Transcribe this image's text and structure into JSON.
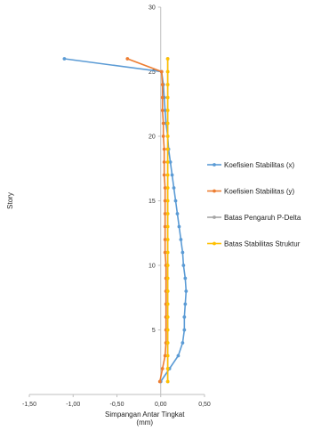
{
  "chart_data": {
    "type": "line",
    "xlabel": "Simpangan Antar Tingkat\n(mm)",
    "ylabel": "Story",
    "xlim": [
      -1.5,
      0.5
    ],
    "ylim": [
      0,
      30
    ],
    "xticks": [
      "-1,50",
      "-1,00",
      "-0,50",
      "0,00",
      "0,50"
    ],
    "yticks": [
      "5",
      "10",
      "15",
      "20",
      "25",
      "30"
    ],
    "grid": false,
    "legend_position": "right",
    "series": [
      {
        "name": "Koefisien Stabilitas (x)",
        "color": "#5b9bd5",
        "marker": "circle",
        "points": [
          [
            0.0,
            1
          ],
          [
            0.1,
            2
          ],
          [
            0.2,
            3
          ],
          [
            0.25,
            4
          ],
          [
            0.27,
            5
          ],
          [
            0.27,
            6
          ],
          [
            0.28,
            7
          ],
          [
            0.29,
            8
          ],
          [
            0.28,
            9
          ],
          [
            0.26,
            10
          ],
          [
            0.25,
            11
          ],
          [
            0.23,
            12
          ],
          [
            0.21,
            13
          ],
          [
            0.19,
            14
          ],
          [
            0.17,
            15
          ],
          [
            0.15,
            16
          ],
          [
            0.13,
            17
          ],
          [
            0.11,
            18
          ],
          [
            0.09,
            19
          ],
          [
            0.08,
            20
          ],
          [
            0.06,
            21
          ],
          [
            0.05,
            22
          ],
          [
            0.04,
            23
          ],
          [
            0.03,
            24
          ],
          [
            0.01,
            25
          ],
          [
            -1.1,
            26
          ]
        ]
      },
      {
        "name": "Koefisien Stabilitas (y)",
        "color": "#ed7d31",
        "marker": "circle",
        "points": [
          [
            -0.01,
            1
          ],
          [
            0.02,
            2
          ],
          [
            0.05,
            3
          ],
          [
            0.06,
            4
          ],
          [
            0.06,
            5
          ],
          [
            0.06,
            6
          ],
          [
            0.06,
            7
          ],
          [
            0.06,
            8
          ],
          [
            0.06,
            9
          ],
          [
            0.06,
            10
          ],
          [
            0.05,
            11
          ],
          [
            0.05,
            12
          ],
          [
            0.05,
            13
          ],
          [
            0.05,
            14
          ],
          [
            0.05,
            15
          ],
          [
            0.05,
            16
          ],
          [
            0.04,
            17
          ],
          [
            0.04,
            18
          ],
          [
            0.04,
            19
          ],
          [
            0.03,
            20
          ],
          [
            0.03,
            21
          ],
          [
            0.02,
            22
          ],
          [
            0.02,
            23
          ],
          [
            0.02,
            24
          ],
          [
            0.01,
            25
          ],
          [
            -0.38,
            26
          ]
        ]
      },
      {
        "name": "Batas Pengaruh P-Delta",
        "color": "#a5a5a5",
        "marker": "circle",
        "points": [
          [
            0.08,
            1
          ],
          [
            0.08,
            2
          ],
          [
            0.08,
            3
          ],
          [
            0.08,
            4
          ],
          [
            0.08,
            5
          ],
          [
            0.08,
            6
          ],
          [
            0.08,
            7
          ],
          [
            0.08,
            8
          ],
          [
            0.08,
            9
          ],
          [
            0.08,
            10
          ],
          [
            0.08,
            11
          ],
          [
            0.08,
            12
          ],
          [
            0.08,
            13
          ],
          [
            0.08,
            14
          ],
          [
            0.08,
            15
          ],
          [
            0.08,
            16
          ],
          [
            0.08,
            17
          ],
          [
            0.08,
            18
          ],
          [
            0.08,
            19
          ],
          [
            0.08,
            20
          ],
          [
            0.08,
            21
          ],
          [
            0.08,
            22
          ],
          [
            0.08,
            23
          ],
          [
            0.08,
            24
          ],
          [
            0.08,
            25
          ],
          [
            0.08,
            26
          ]
        ]
      },
      {
        "name": "Batas Stabilitas Struktur",
        "color": "#ffc000",
        "marker": "circle",
        "points": [
          [
            0.08,
            1
          ],
          [
            0.08,
            2
          ],
          [
            0.08,
            3
          ],
          [
            0.08,
            4
          ],
          [
            0.08,
            5
          ],
          [
            0.08,
            6
          ],
          [
            0.08,
            7
          ],
          [
            0.08,
            8
          ],
          [
            0.08,
            9
          ],
          [
            0.08,
            10
          ],
          [
            0.08,
            11
          ],
          [
            0.08,
            12
          ],
          [
            0.08,
            13
          ],
          [
            0.08,
            14
          ],
          [
            0.08,
            15
          ],
          [
            0.08,
            16
          ],
          [
            0.08,
            17
          ],
          [
            0.08,
            18
          ],
          [
            0.08,
            19
          ],
          [
            0.08,
            20
          ],
          [
            0.08,
            21
          ],
          [
            0.08,
            22
          ],
          [
            0.08,
            23
          ],
          [
            0.08,
            24
          ],
          [
            0.08,
            25
          ],
          [
            0.08,
            26
          ]
        ]
      }
    ]
  }
}
